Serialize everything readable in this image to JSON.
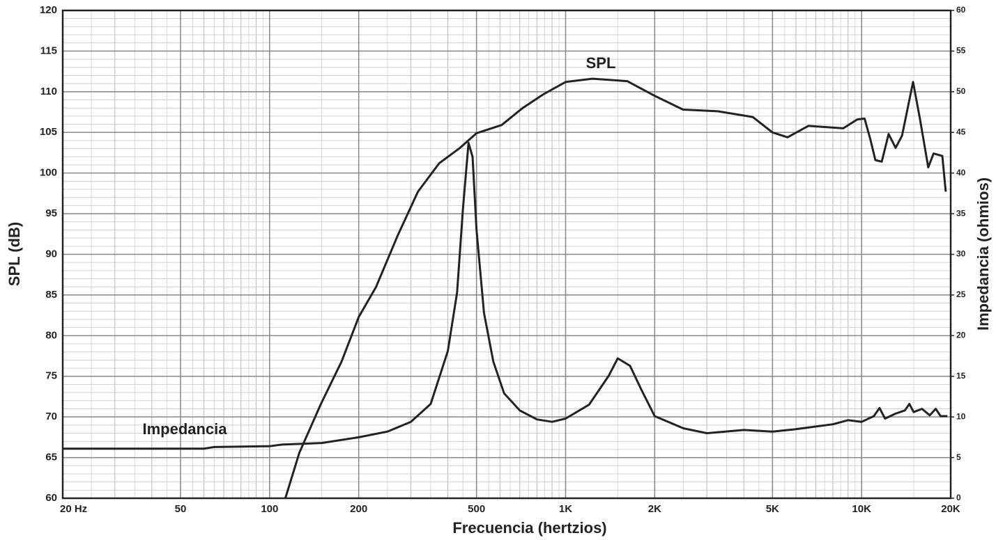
{
  "chart_data": {
    "type": "line",
    "xlabel": "Frecuencia (hertzios)",
    "ylabel": "SPL (dB)",
    "y2label": "Impedancia (ohmios)",
    "xscale": "log",
    "grid": true,
    "xlim": [
      20,
      20000
    ],
    "xticks": [
      {
        "value": 20,
        "label": "20  Hz"
      },
      50,
      100,
      200,
      500,
      {
        "value": 1000,
        "label": "1K"
      },
      {
        "value": 2000,
        "label": "2K"
      },
      {
        "value": 5000,
        "label": "5K"
      },
      {
        "value": 10000,
        "label": "10K"
      },
      {
        "value": 20000,
        "label": "20K"
      }
    ],
    "ylim": [
      60,
      120
    ],
    "yticks": [
      60,
      65,
      70,
      75,
      80,
      85,
      90,
      95,
      100,
      105,
      110,
      115,
      120
    ],
    "y2lim": [
      0,
      60
    ],
    "y2ticks": [
      0,
      5,
      10,
      15,
      20,
      25,
      30,
      35,
      40,
      45,
      50,
      55,
      60
    ],
    "series": [
      {
        "name": "SPL",
        "color": "#222222",
        "x": [
          113,
          126,
          149,
          175,
          200,
          229,
          270,
          317,
          374,
          440,
          500,
          608,
          716,
          843,
          1000,
          1232,
          1615,
          2000,
          2493,
          3267,
          4285,
          5000,
          5624,
          6611,
          8668,
          9670,
          10230,
          10700,
          11130,
          11700,
          12340,
          13030,
          13700,
          14920,
          15740,
          16800,
          17500,
          18740,
          19240
        ],
        "values": [
          60,
          65.6,
          71.6,
          76.8,
          82.3,
          86.0,
          92.2,
          97.7,
          101.2,
          103.1,
          104.9,
          105.9,
          108.0,
          109.7,
          111.2,
          111.6,
          111.3,
          109.5,
          107.8,
          107.6,
          106.9,
          105.0,
          104.4,
          105.8,
          105.5,
          106.6,
          106.7,
          104.2,
          101.6,
          101.4,
          104.8,
          103.1,
          104.6,
          111.2,
          106.7,
          100.7,
          102.4,
          102.1,
          97.7
        ]
      },
      {
        "name": "Impedancia",
        "color": "#222222",
        "axis": "y2",
        "x": [
          20,
          60,
          65,
          100,
          110,
          150,
          200,
          250,
          300,
          350,
          400,
          430,
          450,
          470,
          485,
          500,
          530,
          570,
          620,
          700,
          800,
          900,
          1000,
          1200,
          1400,
          1500,
          1650,
          1800,
          2000,
          2500,
          3000,
          4000,
          5000,
          6000,
          8000,
          9000,
          10000,
          11000,
          11500,
          12000,
          13000,
          14000,
          14500,
          15000,
          16000,
          17000,
          17800,
          18500,
          19500
        ],
        "values": [
          6.1,
          6.1,
          6.3,
          6.4,
          6.6,
          6.8,
          7.5,
          8.2,
          9.4,
          11.6,
          18.1,
          25.3,
          35.6,
          43.7,
          42.0,
          33.0,
          22.8,
          16.8,
          12.9,
          10.8,
          9.7,
          9.4,
          9.8,
          11.5,
          15.1,
          17.2,
          16.3,
          13.4,
          10.1,
          8.6,
          8.0,
          8.4,
          8.2,
          8.5,
          9.1,
          9.6,
          9.4,
          10.1,
          11.1,
          9.8,
          10.4,
          10.8,
          11.6,
          10.6,
          11.0,
          10.2,
          11.0,
          10.1,
          10.1
        ]
      }
    ]
  }
}
